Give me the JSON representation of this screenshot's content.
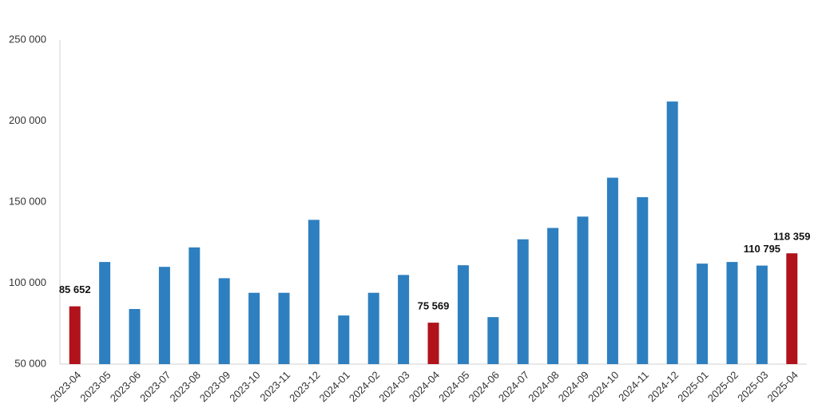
{
  "chart_data": {
    "type": "bar",
    "categories": [
      "2023-04",
      "2023-05",
      "2023-06",
      "2023-07",
      "2023-08",
      "2023-09",
      "2023-10",
      "2023-11",
      "2023-12",
      "2024-01",
      "2024-02",
      "2024-03",
      "2024-04",
      "2024-05",
      "2024-06",
      "2024-07",
      "2024-08",
      "2024-09",
      "2024-10",
      "2024-11",
      "2024-12",
      "2025-01",
      "2025-02",
      "2025-03",
      "2025-04"
    ],
    "values": [
      85652,
      113000,
      84000,
      110000,
      122000,
      103000,
      94000,
      94000,
      139000,
      80000,
      94000,
      105000,
      75569,
      111000,
      79000,
      127000,
      134000,
      141000,
      165000,
      153000,
      212000,
      112000,
      113000,
      110795,
      118359
    ],
    "value_labels": [
      "85 652",
      null,
      null,
      null,
      null,
      null,
      null,
      null,
      null,
      null,
      null,
      null,
      "75 569",
      null,
      null,
      null,
      null,
      null,
      null,
      null,
      null,
      null,
      null,
      "110 795",
      "118 359"
    ],
    "colors": [
      "#b0131b",
      "#2e7fbf",
      "#2e7fbf",
      "#2e7fbf",
      "#2e7fbf",
      "#2e7fbf",
      "#2e7fbf",
      "#2e7fbf",
      "#2e7fbf",
      "#2e7fbf",
      "#2e7fbf",
      "#2e7fbf",
      "#b0131b",
      "#2e7fbf",
      "#2e7fbf",
      "#2e7fbf",
      "#2e7fbf",
      "#2e7fbf",
      "#2e7fbf",
      "#2e7fbf",
      "#2e7fbf",
      "#2e7fbf",
      "#2e7fbf",
      "#2e7fbf",
      "#b0131b"
    ],
    "ylim": [
      50000,
      250000
    ],
    "yticks": [
      {
        "value": 50000,
        "label": "50 000"
      },
      {
        "value": 100000,
        "label": "100 000"
      },
      {
        "value": 150000,
        "label": "150 000"
      },
      {
        "value": 200000,
        "label": "200 000"
      },
      {
        "value": 250000,
        "label": "250 000"
      }
    ],
    "grid": false
  }
}
